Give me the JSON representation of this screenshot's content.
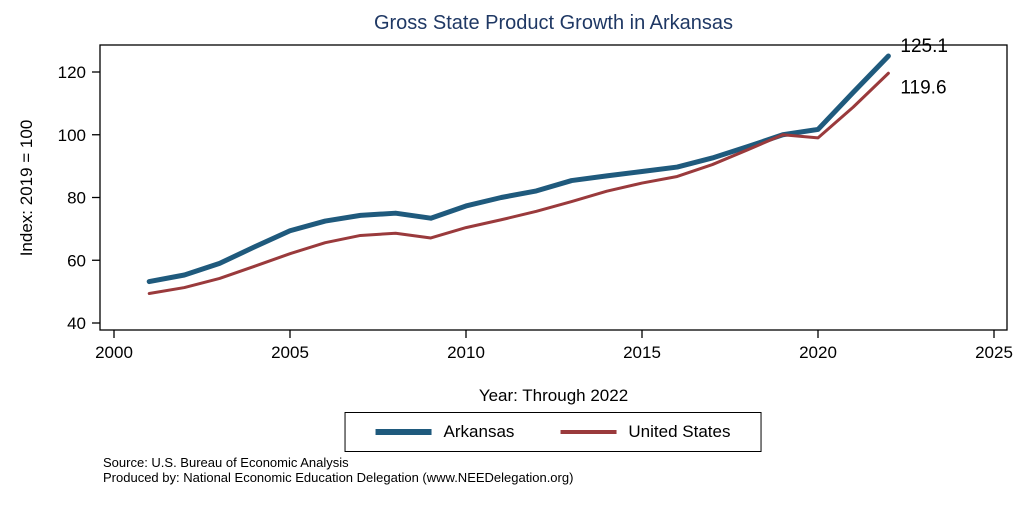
{
  "chart_data": {
    "type": "line",
    "title": "Gross State Product Growth in Arkansas",
    "xlabel": "Year: Through 2022",
    "ylabel": "Index: 2019 = 100",
    "xlim": [
      2000,
      2025
    ],
    "ylim": [
      37,
      129
    ],
    "xticks": [
      2000,
      2005,
      2010,
      2015,
      2020,
      2025
    ],
    "yticks": [
      40,
      60,
      80,
      100,
      120
    ],
    "grid": false,
    "legend_position": "bottom",
    "x": [
      2001,
      2002,
      2003,
      2004,
      2005,
      2006,
      2007,
      2008,
      2009,
      2010,
      2011,
      2012,
      2013,
      2014,
      2015,
      2016,
      2017,
      2018,
      2019,
      2020,
      2021,
      2022
    ],
    "series": [
      {
        "name": "Arkansas",
        "color": "#1f5a7d",
        "line_width": 5,
        "end_label": "125.1",
        "values": [
          53.2,
          55.3,
          59.0,
          64.3,
          69.4,
          72.5,
          74.3,
          75.0,
          73.4,
          77.3,
          80.0,
          82.1,
          85.4,
          86.9,
          88.3,
          89.7,
          92.6,
          96.2,
          100.0,
          101.7,
          113.5,
          125.1
        ]
      },
      {
        "name": "United States",
        "color": "#9a3a3c",
        "line_width": 3,
        "end_label": "119.6",
        "values": [
          49.4,
          51.3,
          54.2,
          58.1,
          62.1,
          65.6,
          67.9,
          68.6,
          67.1,
          70.4,
          72.9,
          75.6,
          78.7,
          82.0,
          84.6,
          86.7,
          90.5,
          95.2,
          100.0,
          99.0,
          108.8,
          119.6
        ]
      }
    ]
  },
  "footer": {
    "source": "Source: U.S. Bureau of Economic Analysis",
    "produced": "Produced by: National Economic Education Delegation (www.NEEDelegation.org)"
  },
  "colors": {
    "title": "#1f3864",
    "axis": "#000000",
    "background": "#ffffff"
  }
}
